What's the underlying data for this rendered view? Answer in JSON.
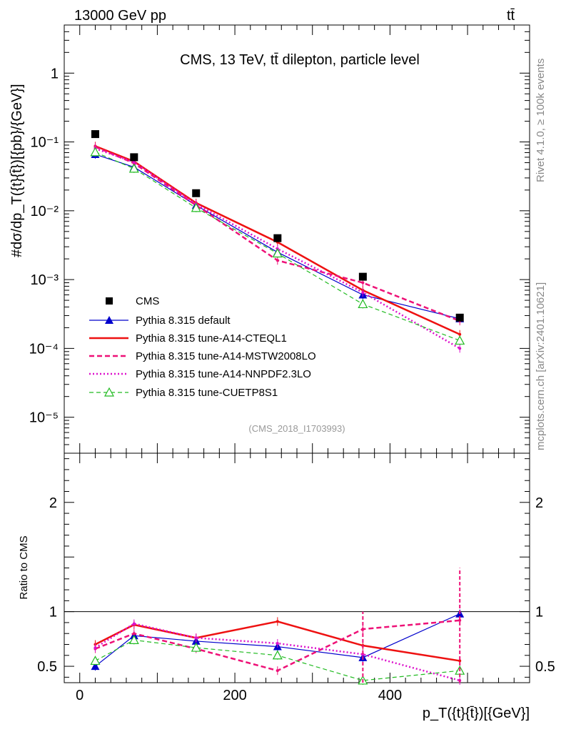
{
  "header": {
    "energy_label": "13000 GeV pp",
    "process_label": "tt̄"
  },
  "side_labels": {
    "rivet": "Rivet 4.1.0, ≥ 100k events",
    "mcplots": "mcplots.cern.ch [arXiv:2401.10621]"
  },
  "chart_data": [
    {
      "type": "line",
      "panel": "main",
      "title": "CMS, 13 TeV, tt̄ dilepton, particle level",
      "analysis_tag": "(CMS_2018_I1703993)",
      "xlabel": "p_T({t}{t̄})[{GeV}]",
      "ylabel": "#dσ/dp_T({t}{t̄})[{pb}/{GeV}]",
      "xlim": [
        -20,
        580
      ],
      "ylim": [
        3e-06,
        5
      ],
      "yscale": "log",
      "x_ticks": [
        0,
        200,
        400
      ],
      "y_ticks": [
        {
          "value": 1,
          "label": "1"
        },
        {
          "value": 0.1,
          "label": "10⁻¹"
        },
        {
          "value": 0.01,
          "label": "10⁻²"
        },
        {
          "value": 0.001,
          "label": "10⁻³"
        },
        {
          "value": 0.0001,
          "label": "10⁻⁴"
        },
        {
          "value": 1e-05,
          "label": "10⁻⁵"
        }
      ],
      "x": [
        20,
        70,
        150,
        255,
        365,
        490
      ],
      "series": [
        {
          "name": "CMS",
          "color": "#000000",
          "style": "marker-square",
          "values": [
            0.13,
            0.06,
            0.018,
            0.004,
            0.0011,
            0.00028
          ]
        },
        {
          "name": "Pythia 8.315 default",
          "color": "#0000cc",
          "style": "solid-thin-triangle",
          "values": [
            0.066,
            0.043,
            0.012,
            0.0025,
            0.0006,
            0.00027
          ]
        },
        {
          "name": "Pythia 8.315 tune-A14-CTEQL1",
          "color": "#ee1111",
          "style": "solid-thick",
          "values": [
            0.087,
            0.052,
            0.013,
            0.0035,
            0.0007,
            0.00016
          ]
        },
        {
          "name": "Pythia 8.315 tune-A14-MSTW2008LO",
          "color": "#ee1177",
          "style": "dashed",
          "values": [
            0.085,
            0.049,
            0.012,
            0.0019,
            0.0009,
            0.00025
          ]
        },
        {
          "name": "Pythia 8.315 tune-A14-NNPDF2.3LO",
          "color": "#dd11cc",
          "style": "dotted",
          "values": [
            0.08,
            0.051,
            0.0125,
            0.0028,
            0.00065,
            0.0001
          ]
        },
        {
          "name": "Pythia 8.315 tune-CUETP8S1",
          "color": "#22bb22",
          "style": "dashed-open-triangle",
          "values": [
            0.071,
            0.041,
            0.011,
            0.0024,
            0.00044,
            0.00013
          ]
        }
      ]
    },
    {
      "type": "line",
      "panel": "ratio",
      "ylabel": "Ratio to CMS",
      "xlabel": "p_T({t}{t̄})[{GeV}]",
      "xlim": [
        -20,
        580
      ],
      "ylim": [
        0.35,
        2.45
      ],
      "y_ticks": [
        {
          "value": 0.5,
          "label": "0.5"
        },
        {
          "value": 1,
          "label": "1"
        },
        {
          "value": 2,
          "label": "2"
        }
      ],
      "x_ticks": [
        {
          "value": 0,
          "label": "0"
        },
        {
          "value": 200,
          "label": "200"
        },
        {
          "value": 400,
          "label": "400"
        }
      ],
      "x": [
        20,
        70,
        150,
        255,
        365,
        490
      ],
      "series": [
        {
          "name": "Pythia 8.315 default",
          "color": "#0000cc",
          "values": [
            0.5,
            0.78,
            0.73,
            0.68,
            0.58,
            0.98
          ]
        },
        {
          "name": "Pythia 8.315 tune-A14-CTEQL1",
          "color": "#ee1111",
          "values": [
            0.7,
            0.88,
            0.76,
            0.91,
            0.69,
            0.55
          ]
        },
        {
          "name": "Pythia 8.315 tune-A14-MSTW2008LO",
          "color": "#ee1177",
          "values": [
            0.66,
            0.8,
            0.66,
            0.46,
            0.84,
            0.92
          ]
        },
        {
          "name": "Pythia 8.315 tune-A14-NNPDF2.3LO",
          "color": "#dd11cc",
          "values": [
            0.67,
            0.89,
            0.76,
            0.71,
            0.61,
            0.37
          ]
        },
        {
          "name": "Pythia 8.315 tune-CUETP8S1",
          "color": "#22bb22",
          "values": [
            0.55,
            0.74,
            0.67,
            0.6,
            0.37,
            0.46
          ]
        }
      ]
    }
  ]
}
